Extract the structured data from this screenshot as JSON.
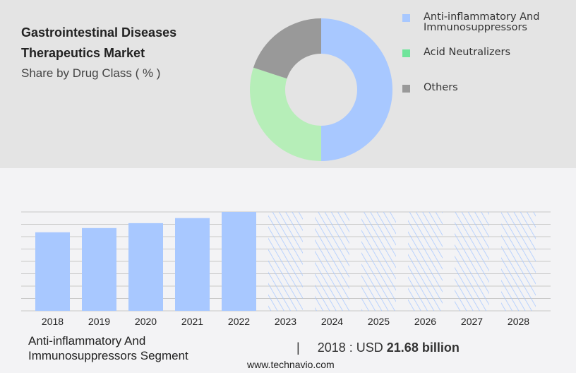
{
  "chart_data": [
    {
      "type": "pie",
      "title": "Gastrointestinal Diseases Therapeutics Market",
      "subtitle": "Share by Drug Class ( % )",
      "donut": true,
      "legend_position": "right",
      "slices": [
        {
          "name": "Anti-inflammatory And Immunosuppressors",
          "value": 50,
          "color": "#a8c8ff"
        },
        {
          "name": "Acid Neutralizers",
          "value": 30,
          "color": "#b6eeb8"
        },
        {
          "name": "Others",
          "value": 20,
          "color": "#999999"
        }
      ],
      "legend_colors": [
        "#a8c8ff",
        "#6fe49a",
        "#999999"
      ]
    },
    {
      "type": "bar",
      "categories": [
        "2018",
        "2019",
        "2020",
        "2021",
        "2022",
        "2023",
        "2024",
        "2025",
        "2026",
        "2027",
        "2028"
      ],
      "values": [
        21.68,
        22.85,
        24.2,
        25.6,
        27.3,
        null,
        null,
        null,
        null,
        null,
        null
      ],
      "forecast_from": "2023",
      "grid": true,
      "ylim": [
        0,
        27.3
      ],
      "color": "#a8c8ff"
    }
  ],
  "title_lines": [
    "Gastrointestinal Diseases",
    "Therapeutics Market"
  ],
  "footer": {
    "segment_lines": [
      "Anti-inflammatory And",
      "Immunosuppressors Segment"
    ],
    "separator": "|",
    "year_text": "2018 : USD",
    "value_text": "21.68 billion",
    "url": "www.technavio.com"
  }
}
